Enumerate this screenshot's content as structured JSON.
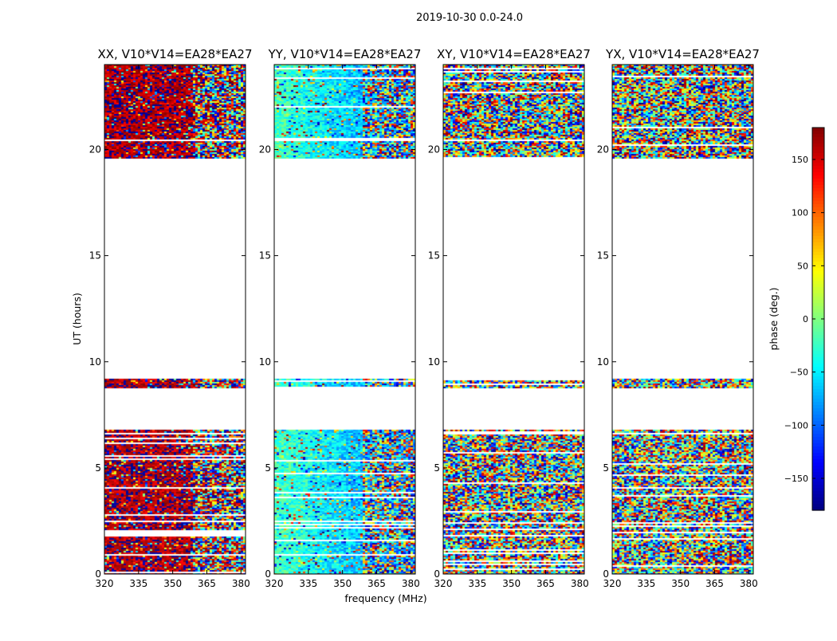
{
  "chart_data": {
    "type": "heatmap",
    "suptitle": "2019-10-30 0.0-24.0",
    "xlabel": "frequency (MHz)",
    "ylabel": "UT (hours)",
    "xlim": [
      320,
      382
    ],
    "ylim": [
      0,
      24
    ],
    "xticks": [
      320,
      335,
      350,
      365,
      380
    ],
    "yticks": [
      0,
      5,
      10,
      15,
      20
    ],
    "data_time_ranges_hours": [
      [
        0.0,
        6.8
      ],
      [
        8.8,
        9.2
      ],
      [
        19.6,
        24.0
      ]
    ],
    "panels": [
      {
        "title": "XX, V10*V14=EA28*EA27",
        "mean_phase_deg": 165,
        "coherence": 0.85
      },
      {
        "title": "YY, V10*V14=EA28*EA27",
        "mean_phase_deg": -20,
        "coherence": 0.85
      },
      {
        "title": "XY, V10*V14=EA28*EA27",
        "mean_phase_deg": 0,
        "coherence": 0.0
      },
      {
        "title": "YX, V10*V14=EA28*EA27",
        "mean_phase_deg": 0,
        "coherence": 0.05
      }
    ],
    "colorbar": {
      "label": "phase (deg.)",
      "range": [
        -180,
        180
      ],
      "ticks": [
        150,
        100,
        50,
        0,
        -50,
        -100,
        -150
      ],
      "tick_labels": [
        "150",
        "100",
        "50",
        "0",
        "−50",
        "−100",
        "−150"
      ],
      "colormap": "jet"
    }
  }
}
